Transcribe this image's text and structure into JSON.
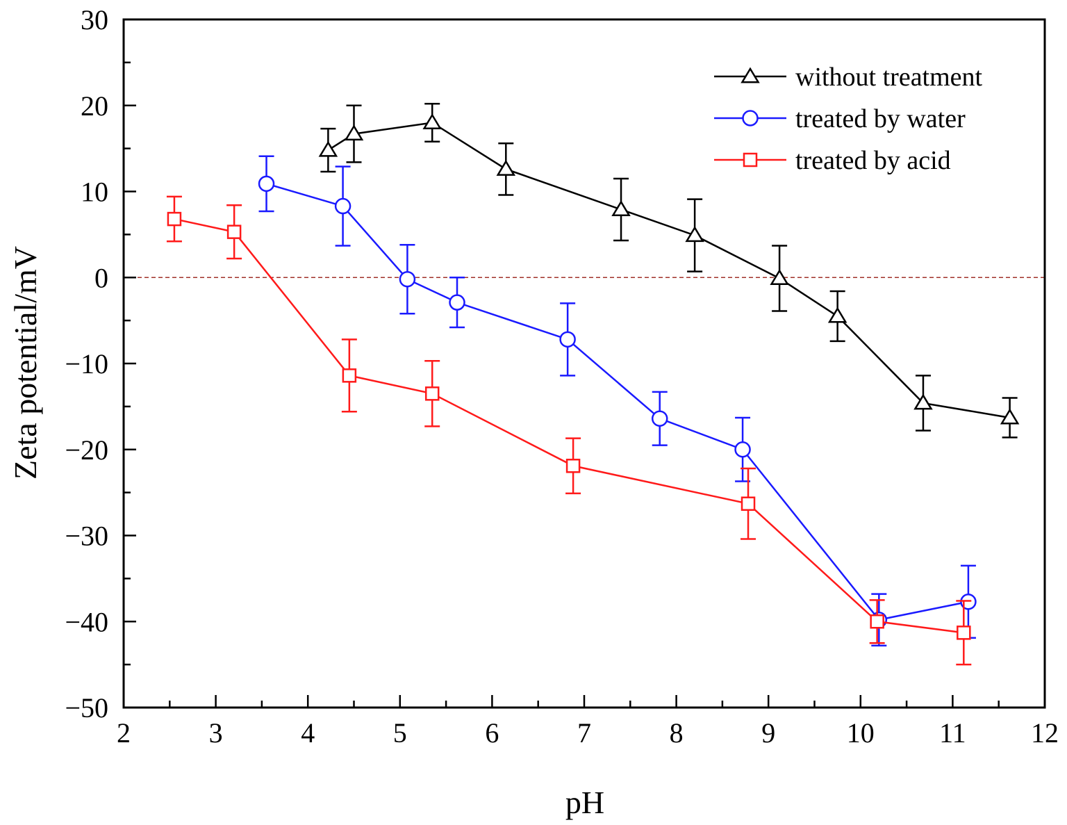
{
  "chart_data": {
    "type": "line",
    "title": "",
    "xlabel": "pH",
    "ylabel": "Zeta potential/mV",
    "xlim": [
      2,
      12
    ],
    "ylim": [
      -50,
      30
    ],
    "xticks": [
      2,
      3,
      4,
      5,
      6,
      7,
      8,
      9,
      10,
      11,
      12
    ],
    "yticks": [
      -50,
      -40,
      -30,
      -20,
      -10,
      0,
      10,
      20,
      30
    ],
    "xtick_labels": [
      "2",
      "3",
      "4",
      "5",
      "6",
      "7",
      "8",
      "9",
      "10",
      "11",
      "12"
    ],
    "ytick_labels": [
      "−50",
      "−40",
      "−30",
      "−20",
      "−10",
      "0",
      "10",
      "20",
      "30"
    ],
    "reference_line": {
      "y": 0,
      "style": "dashed",
      "color": "#a0302a"
    },
    "legend_position": "top-right",
    "series": [
      {
        "name": "without treatment",
        "color": "#000000",
        "marker": "triangle",
        "x": [
          4.22,
          4.5,
          5.35,
          6.15,
          7.4,
          8.2,
          9.12,
          9.75,
          10.68,
          11.62
        ],
        "y": [
          14.8,
          16.7,
          18.0,
          12.6,
          7.9,
          4.9,
          -0.1,
          -4.5,
          -14.6,
          -16.3
        ],
        "err": [
          2.5,
          3.3,
          2.2,
          3.0,
          3.6,
          4.2,
          3.8,
          2.9,
          3.2,
          2.3
        ]
      },
      {
        "name": "treated by water",
        "color": "#1a1aff",
        "marker": "circle",
        "x": [
          3.55,
          4.38,
          5.08,
          5.62,
          6.82,
          7.82,
          8.72,
          10.2,
          11.17
        ],
        "y": [
          10.9,
          8.3,
          -0.2,
          -2.9,
          -7.2,
          -16.4,
          -20.0,
          -39.8,
          -37.7
        ],
        "err": [
          3.2,
          4.6,
          4.0,
          2.9,
          4.2,
          3.1,
          3.7,
          3.0,
          4.2
        ]
      },
      {
        "name": "treated by acid",
        "color": "#ff1a1a",
        "marker": "square",
        "x": [
          2.55,
          3.2,
          4.45,
          5.35,
          6.88,
          8.78,
          10.18,
          11.12
        ],
        "y": [
          6.8,
          5.3,
          -11.4,
          -13.5,
          -21.9,
          -26.3,
          -40.0,
          -41.3
        ],
        "err": [
          2.6,
          3.1,
          4.2,
          3.8,
          3.2,
          4.1,
          2.5,
          3.7
        ]
      }
    ]
  }
}
